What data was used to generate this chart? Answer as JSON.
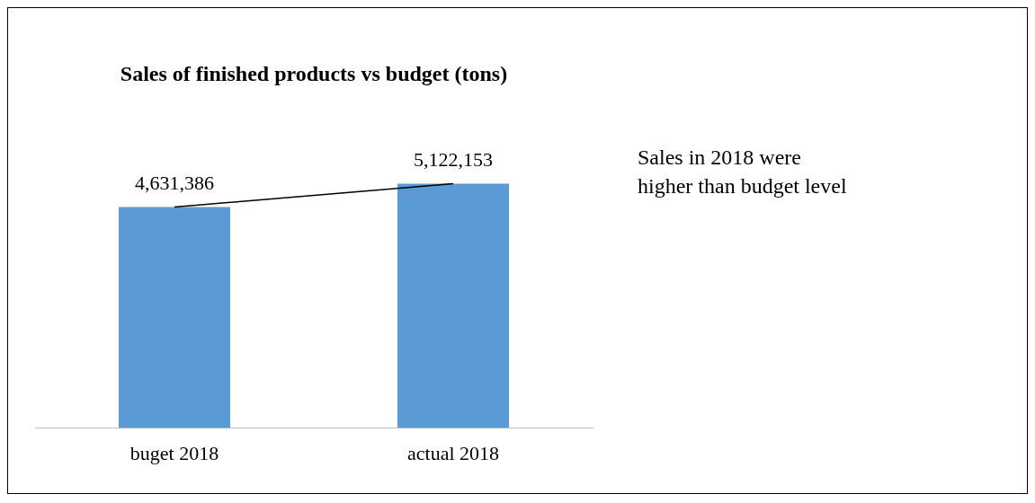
{
  "chart_data": {
    "type": "bar",
    "title": "Sales of finished products vs budget (tons)",
    "categories": [
      "buget 2018",
      "actual 2018"
    ],
    "series": [
      {
        "color": "#5b9bd5",
        "values": [
          4631386,
          5122153
        ],
        "value_labels": [
          "4,631,386",
          "5,122,153"
        ]
      },
      {
        "type": "line",
        "color": "#000000",
        "values": [
          4631386,
          5122153
        ]
      }
    ],
    "annotations": [
      "Sales in 2018 were higher than budget level"
    ],
    "grid": false,
    "legend": false,
    "marker": "none",
    "line_style": "solid",
    "tick_labels": "x"
  }
}
